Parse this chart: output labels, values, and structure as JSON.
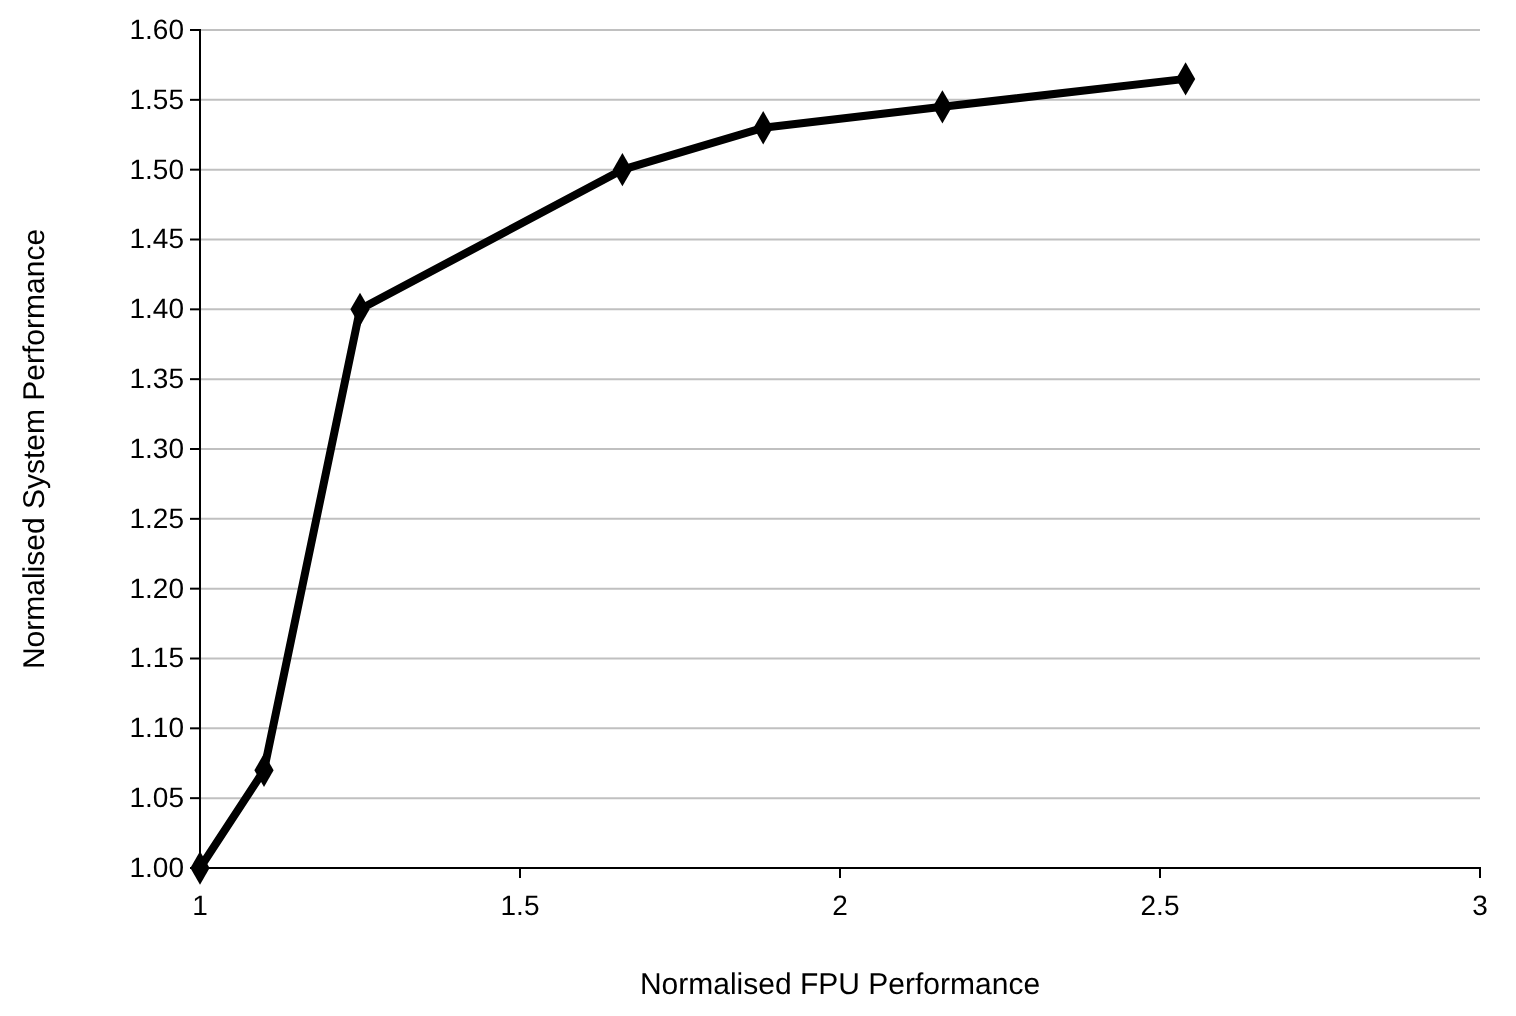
{
  "chart_data": {
    "type": "line",
    "xlabel": "Normalised FPU Performance",
    "ylabel": "Normalised System Performance",
    "x": [
      1,
      1.1,
      1.25,
      1.66,
      1.88,
      2.16,
      2.54
    ],
    "series": [
      {
        "color": "#000000",
        "values": [
          1.0,
          1.07,
          1.4,
          1.5,
          1.53,
          1.545,
          1.565
        ]
      }
    ],
    "xlim": [
      1,
      3
    ],
    "xticks": [
      1,
      1.5,
      2,
      2.5,
      3
    ],
    "ylim": [
      1,
      1.6
    ],
    "yticks": [
      {
        "value": 1,
        "label": "1.00"
      },
      {
        "value": 1.05,
        "label": "1.05"
      },
      {
        "value": 1.1,
        "label": "1.10"
      },
      {
        "value": 1.15,
        "label": "1.15"
      },
      {
        "value": 1.2,
        "label": "1.20"
      },
      {
        "value": 1.25,
        "label": "1.25"
      },
      {
        "value": 1.3,
        "label": "1.30"
      },
      {
        "value": 1.35,
        "label": "1.35"
      },
      {
        "value": 1.4,
        "label": "1.40"
      },
      {
        "value": 1.45,
        "label": "1.45"
      },
      {
        "value": 1.5,
        "label": "1.50"
      },
      {
        "value": 1.55,
        "label": "1.55"
      },
      {
        "value": 1.6,
        "label": "1.60"
      }
    ],
    "grid": "y",
    "marker": "diamond",
    "line_style": "solid"
  }
}
